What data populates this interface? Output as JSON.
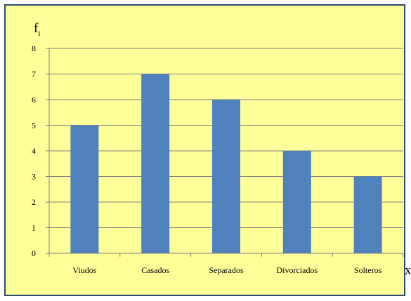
{
  "chart_data": {
    "type": "bar",
    "categories": [
      "Viudos",
      "Casados",
      "Separados",
      "Divorciados",
      "Solteros"
    ],
    "values": [
      5,
      7,
      6,
      4,
      3
    ],
    "ylim": [
      0,
      8
    ],
    "yticks": [
      0,
      1,
      2,
      3,
      4,
      5,
      6,
      7,
      8
    ],
    "ylabel": "f",
    "ylabel_subscript": "i",
    "xlabel": "x",
    "grid": true,
    "colors": {
      "bar": "#4f81bd",
      "background": "#ffff99",
      "border": "#2f4a6f",
      "gridline": "#7f7f7f"
    }
  }
}
